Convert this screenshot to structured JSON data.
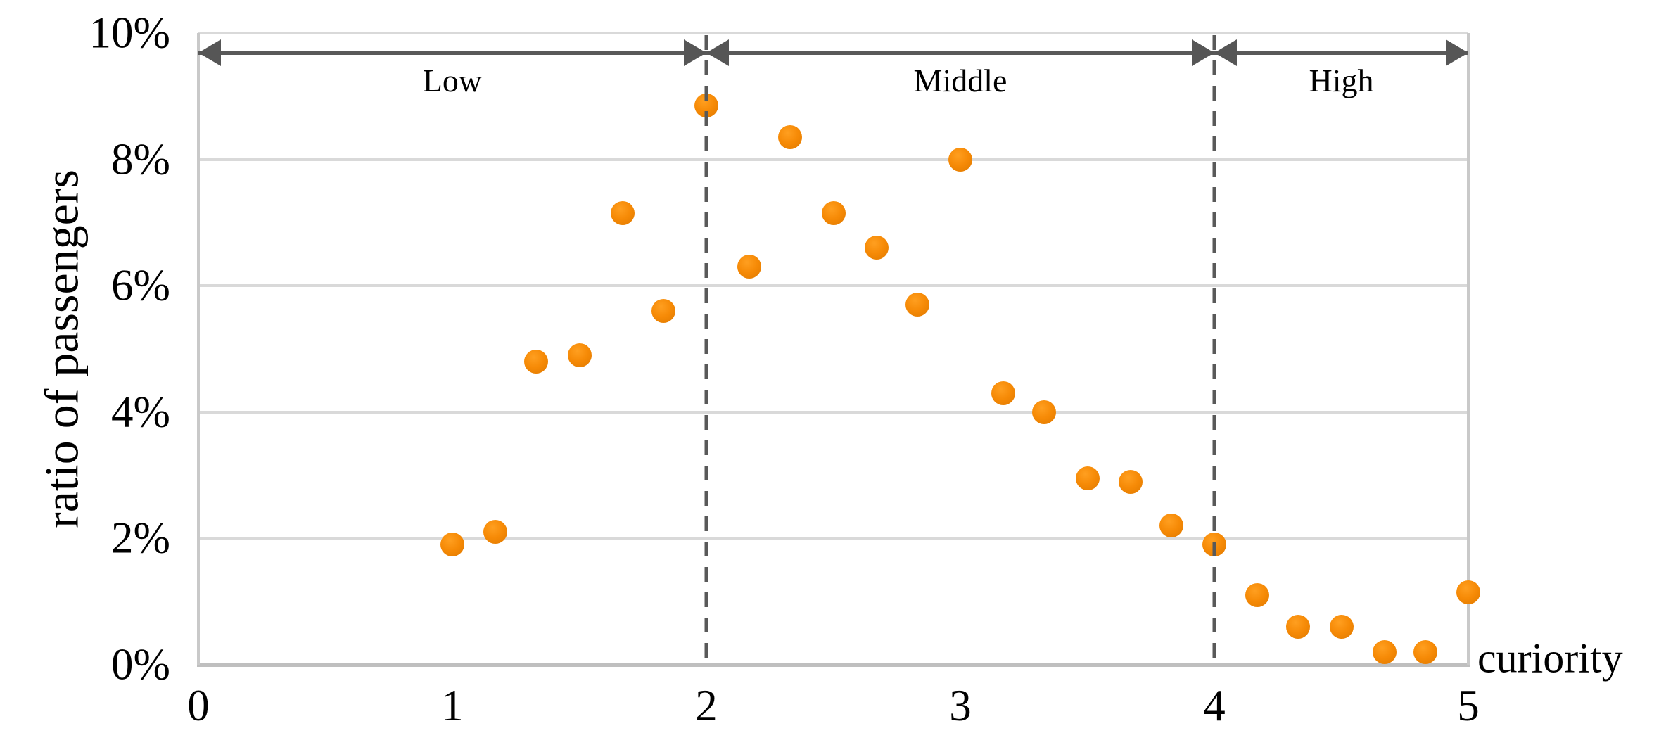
{
  "chart_data": {
    "type": "scatter",
    "title": "",
    "xlabel": "curiority",
    "ylabel": "ratio of passengers",
    "xlim": [
      0,
      5
    ],
    "ylim_percent": [
      0,
      10
    ],
    "grid": "horizontal-only",
    "legend": "none",
    "x_ticks": [
      "0",
      "1",
      "2",
      "3",
      "4",
      "5"
    ],
    "y_ticks": [
      "0%",
      "2%",
      "4%",
      "6%",
      "8%",
      "10%"
    ],
    "point_color": "#F28705",
    "gridline_color": "#D9D9D9",
    "axis_color": "#BFBFBF",
    "annotation_color": "#595959",
    "dividers_x": [
      2,
      4
    ],
    "regions": [
      {
        "label": "Low",
        "from": 0,
        "to": 2
      },
      {
        "label": "Middle",
        "from": 2,
        "to": 4
      },
      {
        "label": "High",
        "from": 4,
        "to": 5
      }
    ],
    "points_x": [
      1.0,
      1.17,
      1.33,
      1.5,
      1.67,
      1.83,
      2.0,
      2.17,
      2.33,
      2.5,
      2.67,
      2.83,
      3.0,
      3.17,
      3.33,
      3.5,
      3.67,
      3.83,
      4.0,
      4.17,
      4.33,
      4.5,
      4.67,
      4.83,
      5.0
    ],
    "points_y_percent": [
      1.9,
      2.1,
      4.8,
      4.9,
      7.15,
      5.6,
      8.85,
      6.3,
      8.35,
      7.15,
      6.6,
      5.7,
      8.0,
      4.3,
      4.0,
      2.95,
      2.9,
      2.2,
      1.9,
      1.1,
      0.6,
      0.6,
      0.2,
      0.2,
      1.15
    ]
  }
}
